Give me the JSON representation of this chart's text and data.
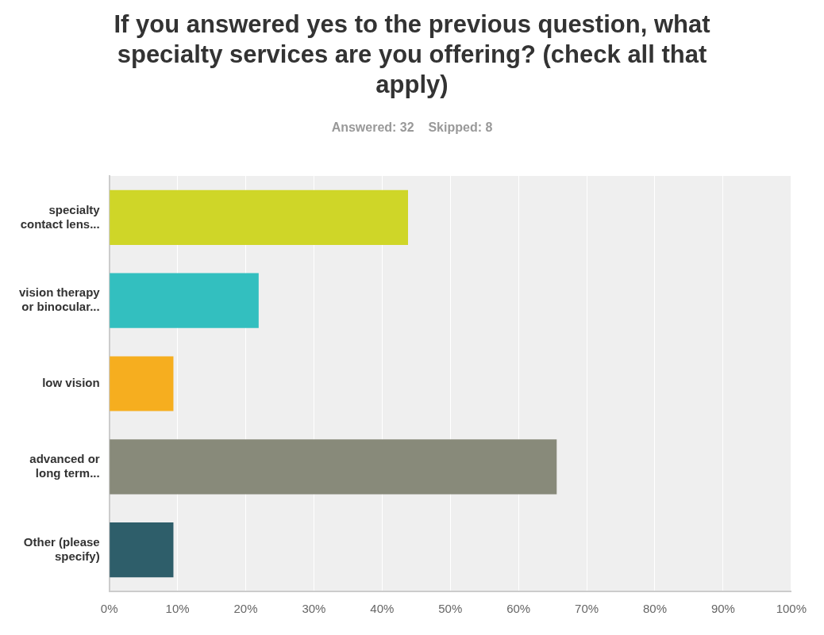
{
  "chart_data": {
    "type": "bar",
    "orientation": "horizontal",
    "title": "If you answered yes to the previous question, what specialty services are you offering? (check all that apply)",
    "subtitle": "Answered: 32    Skipped: 8",
    "categories": [
      "specialty\ncontact lens...",
      "vision therapy\nor binocular...",
      "low vision",
      "advanced or\nlong term...",
      "Other (please\nspecify)"
    ],
    "values": [
      43.8,
      21.9,
      9.4,
      65.6,
      9.4
    ],
    "colors": [
      "#cfd628",
      "#33bfbf",
      "#f6ae1f",
      "#888a7a",
      "#2e5e6a"
    ],
    "xlim": [
      0,
      100
    ],
    "xticks": [
      {
        "value": 0,
        "label": "0%"
      },
      {
        "value": 10,
        "label": "10%"
      },
      {
        "value": 20,
        "label": "20%"
      },
      {
        "value": 30,
        "label": "30%"
      },
      {
        "value": 40,
        "label": "40%"
      },
      {
        "value": 50,
        "label": "50%"
      },
      {
        "value": 60,
        "label": "60%"
      },
      {
        "value": 70,
        "label": "70%"
      },
      {
        "value": 80,
        "label": "80%"
      },
      {
        "value": 90,
        "label": "90%"
      },
      {
        "value": 100,
        "label": "100%"
      }
    ],
    "grid": "x"
  }
}
